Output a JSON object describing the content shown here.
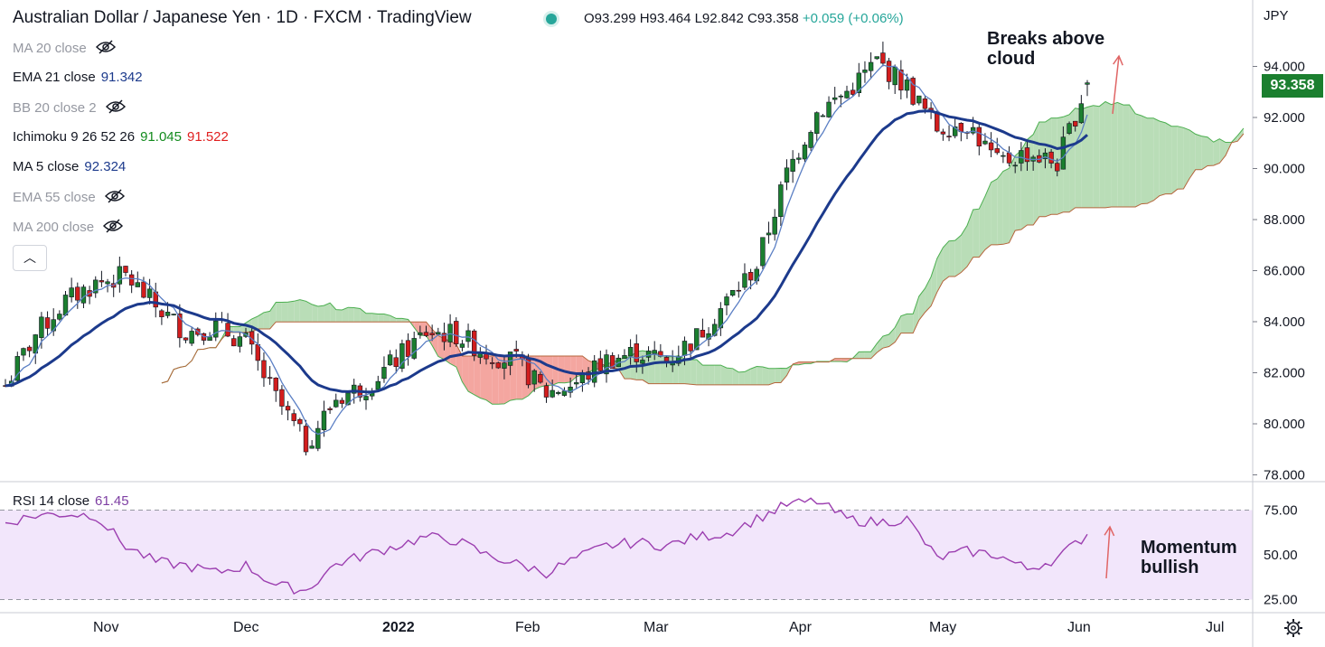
{
  "header": {
    "title": "Australian Dollar / Japanese Yen · 1D · FXCM · TradingView",
    "ohlc": "O93.299  H93.464  L92.842  C93.358",
    "change": "+0.059 (+0.06%)"
  },
  "legend": [
    {
      "label": "MA 20 close",
      "value": "",
      "hidden": true
    },
    {
      "label": "EMA 21 close",
      "value": "91.342",
      "hidden": false,
      "color": "#1c3a8c"
    },
    {
      "label": "BB 20 close 2",
      "value": "",
      "hidden": true
    },
    {
      "label": "Ichimoku 9 26 52 26",
      "value": "91.045",
      "value2": "91.522",
      "hidden": false,
      "color": "#138b1e",
      "color2": "#e01f1f"
    },
    {
      "label": "MA 5 close",
      "value": "92.324",
      "hidden": false,
      "color": "#1c3a8c"
    },
    {
      "label": "EMA 55 close",
      "value": "",
      "hidden": true
    },
    {
      "label": "MA 200 close",
      "value": "",
      "hidden": true
    }
  ],
  "price_scale": {
    "currency": "JPY",
    "ticks": [
      "94.000",
      "92.000",
      "90.000",
      "88.000",
      "86.000",
      "84.000",
      "82.000",
      "80.000",
      "78.000"
    ],
    "last_price": "93.358"
  },
  "rsi": {
    "label": "RSI 14 close",
    "value": "61.45",
    "ticks": [
      "75.00",
      "50.00",
      "25.00"
    ]
  },
  "time_axis": [
    "Nov",
    "Dec",
    "2022",
    "Feb",
    "Mar",
    "Apr",
    "May",
    "Jun",
    "Jul"
  ],
  "annotations": {
    "price": [
      "Breaks above",
      "cloud"
    ],
    "rsi": [
      "Momentum",
      "bullish"
    ]
  },
  "colors": {
    "up": "#1b7f2f",
    "down": "#d21d1d",
    "ema21": "#1c3a8c",
    "ma5": "#5b7fc4",
    "cloud_bull": "#b9ddb7",
    "cloud_bear": "#f4a6a0",
    "rsi": "#9c3fb0",
    "arrow": "#e06666"
  },
  "chart_data": [
    {
      "type": "candlestick",
      "title": "Australian Dollar / Japanese Yen · 1D · FXCM · TradingView",
      "ylabel": "JPY",
      "ylim": [
        78,
        95.5
      ],
      "x_ticks": [
        "Nov",
        "Dec",
        "2022",
        "Feb",
        "Mar",
        "Apr",
        "May",
        "Jun",
        "Jul"
      ],
      "closes_weekly_approx": [
        81.5,
        83.5,
        84.8,
        85.5,
        85.8,
        84.6,
        83.6,
        83.8,
        83.2,
        81.0,
        79.2,
        81.0,
        81.5,
        82.5,
        83.6,
        83.5,
        82.8,
        82.4,
        81.2,
        81.6,
        82.5,
        82.8,
        82.5,
        83.4,
        84.8,
        86.2,
        89.8,
        92.2,
        93.0,
        94.2,
        93.2,
        91.6,
        91.8,
        90.2,
        90.6,
        90.2,
        93.36
      ],
      "series": [
        {
          "name": "EMA 21 close",
          "last": 91.342
        },
        {
          "name": "MA 5 close",
          "last": 92.324
        },
        {
          "name": "Ichimoku 9 26 52 26",
          "last": 91.045,
          "last2": 91.522
        }
      ],
      "last_close": 93.358
    },
    {
      "type": "line",
      "title": "RSI 14 close",
      "ylim": [
        25,
        75
      ],
      "series": [
        {
          "name": "RSI 14 close",
          "last": 61.45
        }
      ],
      "values_weekly_approx": [
        68,
        72,
        73,
        72,
        55,
        46,
        44,
        40,
        44,
        33,
        30,
        45,
        50,
        55,
        60,
        58,
        50,
        45,
        40,
        48,
        55,
        57,
        55,
        60,
        62,
        70,
        78,
        80,
        70,
        68,
        70,
        48,
        52,
        50,
        42,
        48,
        61.45
      ]
    }
  ]
}
